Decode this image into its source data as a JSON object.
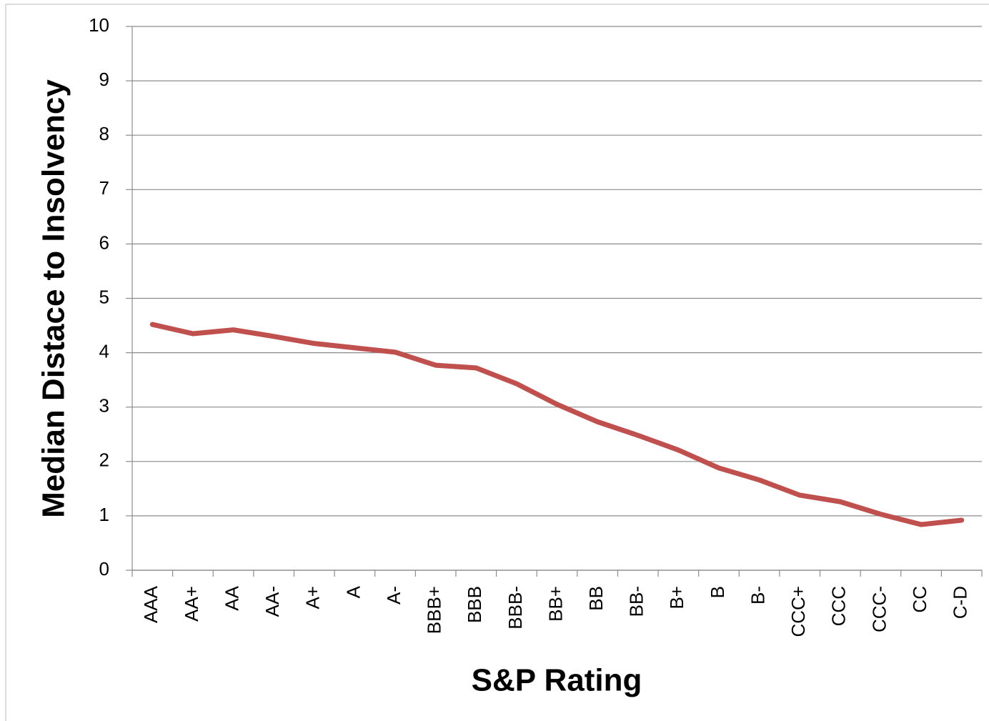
{
  "chart_data": {
    "type": "line",
    "x_label": "S&P Rating",
    "y_label": "Median Distace to Insolvency",
    "categories": [
      "AAA",
      "AA+",
      "AA",
      "AA-",
      "A+",
      "A",
      "A-",
      "BBB+",
      "BBB",
      "BBB-",
      "BB+",
      "BB",
      "BB-",
      "B+",
      "B",
      "B-",
      "CCC+",
      "CCC",
      "CCC-",
      "CC",
      "C-D"
    ],
    "series": [
      {
        "color": "#c0504d",
        "values": [
          4.52,
          4.35,
          4.42,
          4.3,
          4.17,
          4.09,
          4.01,
          3.77,
          3.72,
          3.43,
          3.05,
          2.73,
          2.48,
          2.21,
          1.88,
          1.66,
          1.38,
          1.26,
          1.03,
          0.84,
          0.92
        ]
      }
    ],
    "ylim": [
      0,
      10
    ],
    "yticks": [
      0,
      1,
      2,
      3,
      4,
      5,
      6,
      7,
      8,
      9,
      10
    ],
    "grid": true
  }
}
